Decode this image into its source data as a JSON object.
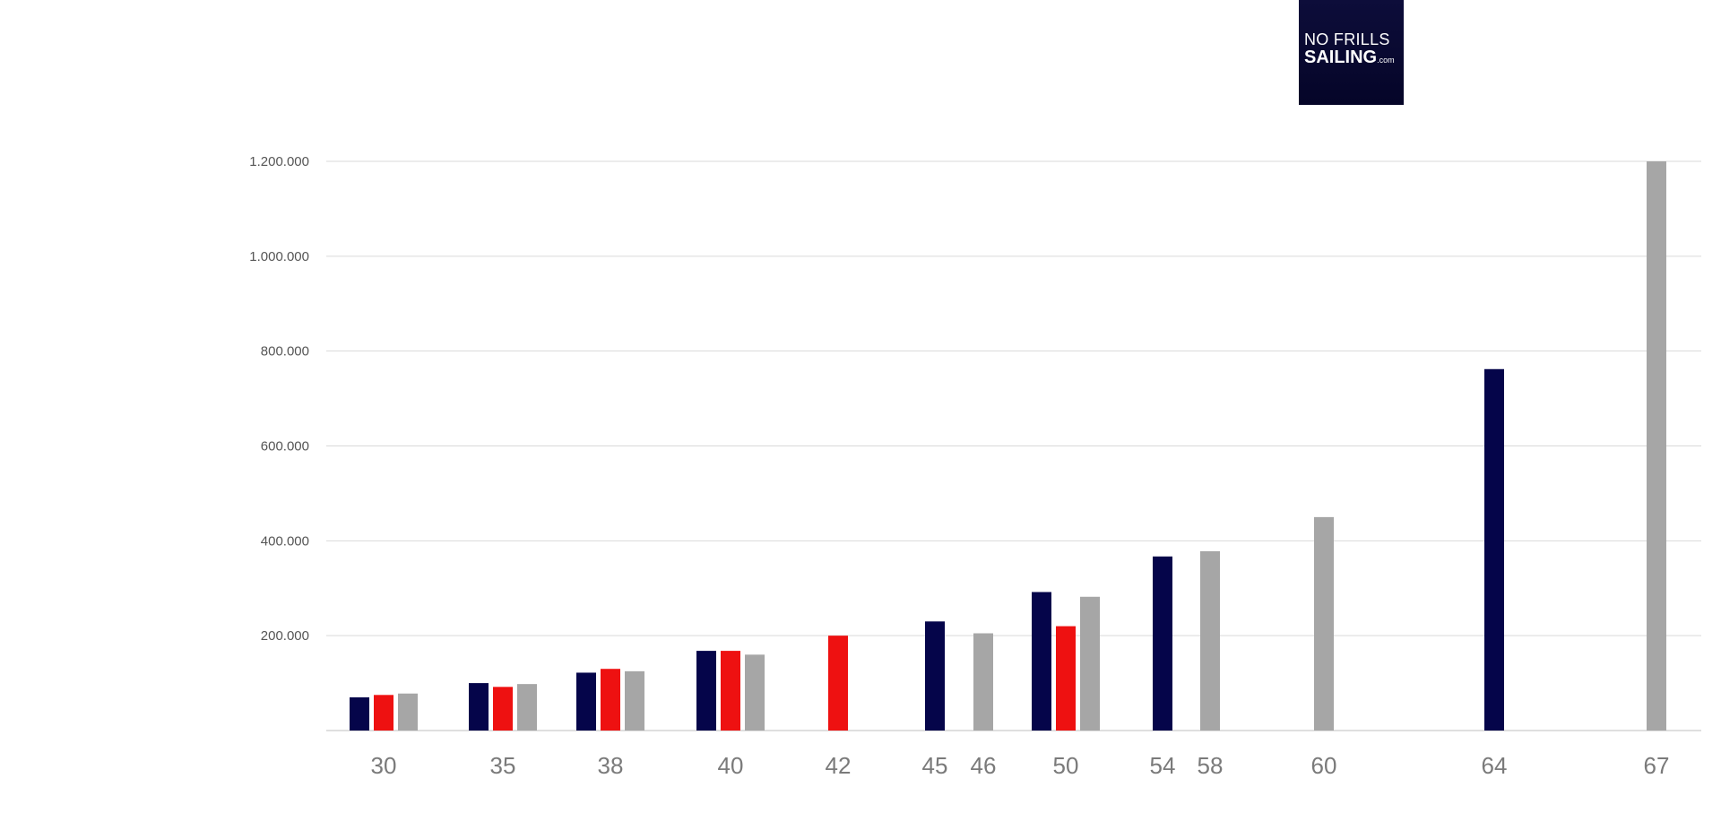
{
  "logo": {
    "line1": "NO FRILLS",
    "line2": "SAILING",
    "suffix": ".com"
  },
  "chart_data": {
    "type": "bar",
    "title": "",
    "xlabel": "",
    "ylabel": "",
    "ylim": [
      0,
      1200000
    ],
    "yticks": [
      {
        "value": 200000,
        "label": "200.000"
      },
      {
        "value": 400000,
        "label": "400.000"
      },
      {
        "value": 600000,
        "label": "600.000"
      },
      {
        "value": 800000,
        "label": "800.000"
      },
      {
        "value": 1000000,
        "label": "1.000.000"
      },
      {
        "value": 1200000,
        "label": "1.200.000"
      }
    ],
    "grid": true,
    "legend": "none",
    "series_colors": [
      "#05054a",
      "#ee1111",
      "#a6a6a6"
    ],
    "categories": [
      "30",
      "35",
      "38",
      "40",
      "42",
      "45",
      "46",
      "50",
      "54",
      "58",
      "60",
      "64",
      "67"
    ],
    "series": [
      {
        "color": "#05054a",
        "values": [
          70000,
          100000,
          122000,
          168000,
          null,
          230000,
          null,
          292000,
          367000,
          null,
          null,
          762000,
          null
        ]
      },
      {
        "color": "#ee1111",
        "values": [
          75000,
          92000,
          130000,
          168000,
          200000,
          null,
          null,
          220000,
          null,
          null,
          null,
          null,
          null
        ]
      },
      {
        "color": "#a6a6a6",
        "values": [
          78000,
          98000,
          125000,
          160000,
          null,
          null,
          205000,
          282000,
          null,
          378000,
          450000,
          null,
          1200000
        ]
      }
    ]
  }
}
